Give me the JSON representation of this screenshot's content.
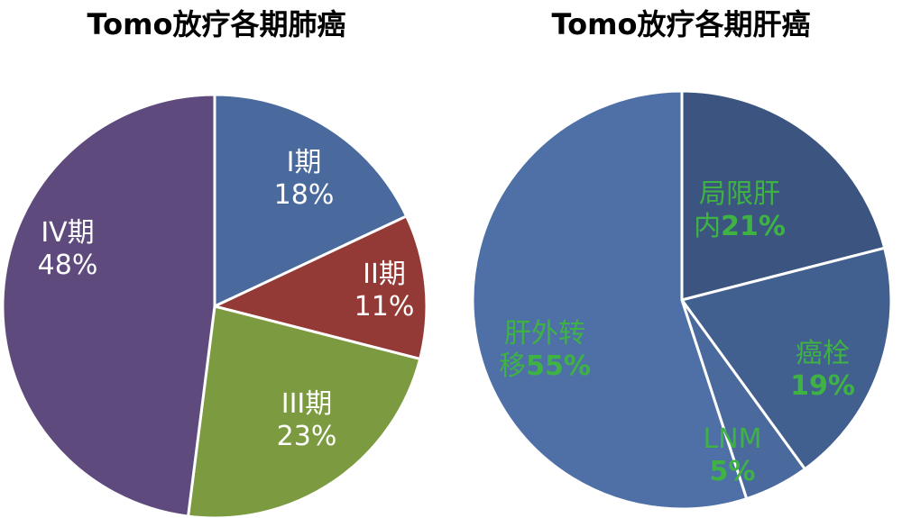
{
  "chart_data": [
    {
      "type": "pie",
      "title": "Tomo放疗各期肺癌",
      "categories": [
        "I期",
        "II期",
        "III期",
        "IV期"
      ],
      "values": [
        18,
        11,
        23,
        48
      ],
      "value_labels": [
        "18%",
        "11%",
        "23%",
        "48%"
      ],
      "colors": [
        "#4a6a9e",
        "#943a36",
        "#7c9a3f",
        "#5e4a7c"
      ],
      "legend": "none"
    },
    {
      "type": "pie",
      "title": "Tomo放疗各期肝癌",
      "categories": [
        "局限肝内",
        "癌栓",
        "LNM",
        "肝外转移"
      ],
      "label_lines": [
        [
          "局限肝",
          "内"
        ],
        [
          "癌栓"
        ],
        [
          "LNM"
        ],
        [
          "肝外转",
          "移"
        ]
      ],
      "values": [
        21,
        19,
        5,
        55
      ],
      "value_labels": [
        "21%",
        "19%",
        "5%",
        "55%"
      ],
      "colors": [
        "#3b5580",
        "#415f8f",
        "#4a6a9e",
        "#4e70a6"
      ],
      "legend": "none"
    }
  ]
}
